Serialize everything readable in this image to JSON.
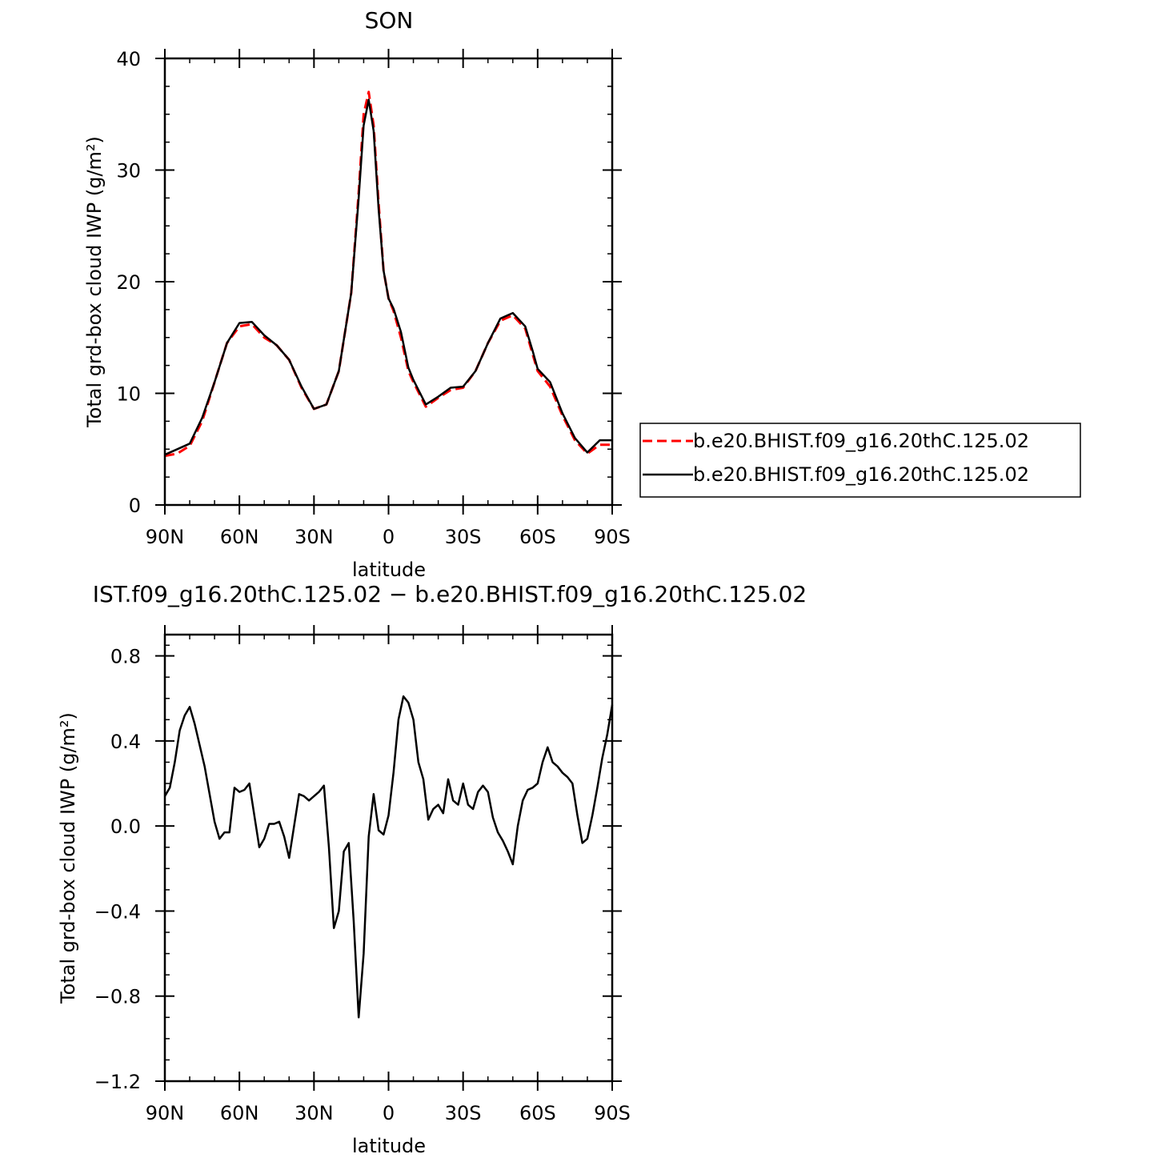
{
  "chart_data": [
    {
      "type": "line",
      "title": "SON",
      "xlabel": "latitude",
      "ylabel": "Total grd-box cloud IWP (g/m²)",
      "xlim": [
        90,
        -90
      ],
      "ylim": [
        0,
        40
      ],
      "x_ticks": [
        90,
        60,
        30,
        0,
        -30,
        -60,
        -90
      ],
      "x_tick_labels": [
        "90N",
        "60N",
        "30N",
        "0",
        "30S",
        "60S",
        "90S"
      ],
      "y_ticks": [
        0,
        10,
        20,
        30,
        40
      ],
      "y_tick_labels": [
        "0",
        "10",
        "20",
        "30",
        "40"
      ],
      "legend_position": "right",
      "x": [
        90,
        85,
        80,
        75,
        70,
        65,
        60,
        55,
        50,
        45,
        40,
        35,
        30,
        25,
        20,
        15,
        12,
        10,
        8,
        6,
        4,
        2,
        0,
        -2,
        -5,
        -8,
        -10,
        -15,
        -20,
        -25,
        -30,
        -35,
        -40,
        -45,
        -50,
        -55,
        -58,
        -60,
        -65,
        -70,
        -75,
        -80,
        -85,
        -90
      ],
      "series": [
        {
          "name": "b.e20.BHIST.f09_g16.20thC.125.02",
          "color": "#ff0000",
          "dash": "dashed",
          "values": [
            4.4,
            4.6,
            5.3,
            7.5,
            11.0,
            14.5,
            16.0,
            16.2,
            15.0,
            14.3,
            13.0,
            10.5,
            8.6,
            9.0,
            12.0,
            19.0,
            28.0,
            35.0,
            37.0,
            34.0,
            27.0,
            21.0,
            18.5,
            17.4,
            15.0,
            12.0,
            11.0,
            8.8,
            9.6,
            10.3,
            10.5,
            12.0,
            14.5,
            16.5,
            17.0,
            15.8,
            13.5,
            12.0,
            10.6,
            8.0,
            5.8,
            4.6,
            5.4,
            5.4
          ]
        },
        {
          "name": "b.e20.BHIST.f09_g16.20thC.125.02",
          "color": "#000000",
          "dash": "solid",
          "values": [
            4.5,
            5.0,
            5.5,
            7.8,
            11.0,
            14.5,
            16.3,
            16.4,
            15.2,
            14.3,
            13.0,
            10.6,
            8.6,
            9.0,
            12.0,
            19.0,
            27.5,
            34.0,
            36.3,
            33.5,
            26.5,
            21.0,
            18.5,
            17.6,
            15.5,
            12.3,
            11.2,
            9.0,
            9.7,
            10.5,
            10.6,
            12.0,
            14.5,
            16.7,
            17.2,
            16.0,
            13.8,
            12.2,
            11.0,
            8.2,
            6.0,
            4.7,
            5.8,
            5.8
          ]
        }
      ]
    },
    {
      "type": "line",
      "title": "IST.f09_g16.20thC.125.02 − b.e20.BHIST.f09_g16.20thC.125.02",
      "xlabel": "latitude",
      "ylabel": "Total grd-box cloud IWP (g/m²)",
      "xlim": [
        90,
        -90
      ],
      "ylim": [
        -1.2,
        0.9
      ],
      "x_ticks": [
        90,
        60,
        30,
        0,
        -30,
        -60,
        -90
      ],
      "x_tick_labels": [
        "90N",
        "60N",
        "30N",
        "0",
        "30S",
        "60S",
        "90S"
      ],
      "y_ticks": [
        -1.2,
        -0.8,
        -0.4,
        0.0,
        0.4,
        0.8
      ],
      "y_tick_labels": [
        "−1.2",
        "−0.8",
        "−0.4",
        "0.0",
        "0.4",
        "0.8"
      ],
      "x": [
        90,
        88,
        86,
        84,
        82,
        80,
        78,
        76,
        74,
        72,
        70,
        68,
        66,
        64,
        62,
        60,
        58,
        56,
        54,
        52,
        50,
        48,
        46,
        44,
        42,
        40,
        38,
        36,
        34,
        32,
        30,
        28,
        26,
        24,
        22,
        20,
        18,
        16,
        14,
        12,
        10,
        8,
        6,
        4,
        2,
        0,
        -2,
        -4,
        -6,
        -8,
        -10,
        -12,
        -14,
        -16,
        -18,
        -20,
        -22,
        -24,
        -26,
        -28,
        -30,
        -32,
        -34,
        -36,
        -38,
        -40,
        -42,
        -44,
        -46,
        -48,
        -50,
        -52,
        -54,
        -56,
        -58,
        -60,
        -62,
        -64,
        -66,
        -68,
        -70,
        -72,
        -74,
        -76,
        -78,
        -80,
        -82,
        -84,
        -86,
        -88,
        -90
      ],
      "series": [
        {
          "name": "",
          "color": "#000000",
          "dash": "solid",
          "values": [
            0.14,
            0.18,
            0.3,
            0.45,
            0.52,
            0.56,
            0.48,
            0.38,
            0.28,
            0.15,
            0.02,
            -0.06,
            -0.03,
            -0.03,
            0.18,
            0.16,
            0.17,
            0.2,
            0.05,
            -0.1,
            -0.06,
            0.01,
            0.01,
            0.02,
            -0.05,
            -0.15,
            0.0,
            0.15,
            0.14,
            0.12,
            0.14,
            0.16,
            0.19,
            -0.1,
            -0.48,
            -0.4,
            -0.12,
            -0.08,
            -0.45,
            -0.9,
            -0.6,
            -0.05,
            0.15,
            -0.02,
            -0.04,
            0.05,
            0.25,
            0.5,
            0.61,
            0.58,
            0.5,
            0.3,
            0.22,
            0.03,
            0.08,
            0.1,
            0.06,
            0.22,
            0.12,
            0.1,
            0.2,
            0.1,
            0.08,
            0.16,
            0.19,
            0.16,
            0.04,
            -0.03,
            -0.07,
            -0.12,
            -0.18,
            0.0,
            0.12,
            0.17,
            0.18,
            0.2,
            0.3,
            0.37,
            0.3,
            0.28,
            0.25,
            0.23,
            0.2,
            0.05,
            -0.08,
            -0.06,
            0.05,
            0.18,
            0.32,
            0.43,
            0.57
          ]
        }
      ]
    }
  ]
}
